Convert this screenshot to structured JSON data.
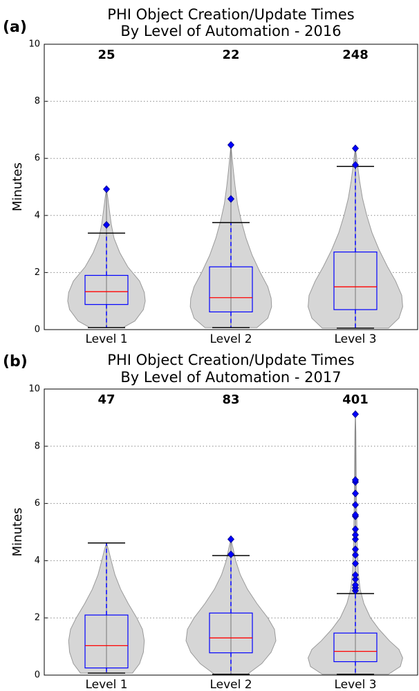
{
  "chart_data": [
    {
      "type": "violin",
      "panel": "(a)",
      "title": "PHI Object Creation/Update Times",
      "subtitle": "By Level of Automation - 2016",
      "ylabel": "Minutes",
      "ylim": [
        0,
        10
      ],
      "yticks": [
        0,
        2,
        4,
        6,
        8,
        10
      ],
      "grid": true,
      "violin_color": "#d6d6d6",
      "box_color": "#0000ff",
      "median_color": "#ff0000",
      "series": [
        {
          "name": "Level 1",
          "count": 25,
          "whislo": 0.07,
          "q1": 0.88,
          "median": 1.33,
          "q3": 1.9,
          "whishi": 3.38,
          "fliers": [
            3.67,
            4.92
          ],
          "density": {
            "y": [
              0.07,
              0.3,
              0.7,
              1.0,
              1.3,
              1.7,
              2.2,
              2.7,
              3.2,
              3.7,
              4.2,
              4.6,
              4.92
            ],
            "w": [
              0.35,
              0.6,
              0.78,
              0.82,
              0.8,
              0.7,
              0.45,
              0.28,
              0.16,
              0.1,
              0.06,
              0.03,
              0.0
            ]
          }
        },
        {
          "name": "Level 2",
          "count": 22,
          "whislo": 0.07,
          "q1": 0.62,
          "median": 1.12,
          "q3": 2.2,
          "whishi": 3.75,
          "fliers": [
            4.58,
            6.47
          ],
          "density": {
            "y": [
              0.07,
              0.4,
              0.8,
              1.1,
              1.5,
              2.0,
              2.6,
              3.2,
              3.8,
              4.4,
              5.0,
              5.6,
              6.1,
              6.47
            ],
            "w": [
              0.55,
              0.78,
              0.86,
              0.85,
              0.78,
              0.62,
              0.45,
              0.32,
              0.22,
              0.14,
              0.09,
              0.05,
              0.02,
              0.0
            ]
          }
        },
        {
          "name": "Level 3",
          "count": 248,
          "whislo": 0.05,
          "q1": 0.7,
          "median": 1.5,
          "q3": 2.72,
          "whishi": 5.72,
          "fliers": [
            5.77,
            6.35
          ],
          "density": {
            "y": [
              0.05,
              0.4,
              0.8,
              1.2,
              1.7,
              2.2,
              2.8,
              3.4,
              4.0,
              4.6,
              5.2,
              5.7,
              6.0,
              6.35
            ],
            "w": [
              0.7,
              0.92,
              1.0,
              0.98,
              0.85,
              0.68,
              0.5,
              0.35,
              0.24,
              0.15,
              0.09,
              0.05,
              0.03,
              0.0
            ]
          }
        }
      ]
    },
    {
      "type": "violin",
      "panel": "(b)",
      "title": "PHI Object Creation/Update Times",
      "subtitle": "By Level of Automation - 2017",
      "ylabel": "Minutes",
      "ylim": [
        0,
        10
      ],
      "yticks": [
        0,
        2,
        4,
        6,
        8,
        10
      ],
      "grid": true,
      "violin_color": "#d6d6d6",
      "box_color": "#0000ff",
      "median_color": "#ff0000",
      "series": [
        {
          "name": "Level 1",
          "count": 47,
          "whislo": 0.07,
          "q1": 0.25,
          "median": 1.03,
          "q3": 2.1,
          "whishi": 4.62,
          "fliers": [],
          "density": {
            "y": [
              0.07,
              0.4,
              0.8,
              1.2,
              1.6,
              2.0,
              2.5,
              3.0,
              3.5,
              4.0,
              4.4,
              4.62
            ],
            "w": [
              0.55,
              0.7,
              0.78,
              0.8,
              0.76,
              0.64,
              0.46,
              0.3,
              0.18,
              0.1,
              0.04,
              0.0
            ]
          }
        },
        {
          "name": "Level 2",
          "count": 83,
          "whislo": 0.03,
          "q1": 0.78,
          "median": 1.3,
          "q3": 2.17,
          "whishi": 4.18,
          "fliers": [
            4.22,
            4.75
          ],
          "density": {
            "y": [
              0.03,
              0.4,
              0.8,
              1.2,
              1.6,
              2.0,
              2.5,
              3.0,
              3.5,
              4.0,
              4.4,
              4.75
            ],
            "w": [
              0.35,
              0.65,
              0.85,
              0.95,
              0.92,
              0.78,
              0.55,
              0.35,
              0.2,
              0.1,
              0.05,
              0.0
            ]
          }
        },
        {
          "name": "Level 3",
          "count": 401,
          "whislo": 0.03,
          "q1": 0.47,
          "median": 0.83,
          "q3": 1.47,
          "whishi": 2.85,
          "fliers": [
            2.95,
            3.05,
            3.15,
            3.35,
            3.5,
            3.9,
            4.2,
            4.4,
            4.75,
            4.9,
            5.1,
            5.55,
            5.6,
            5.95,
            6.35,
            6.75,
            6.82,
            9.12
          ],
          "density": {
            "y": [
              0.03,
              0.3,
              0.6,
              0.9,
              1.2,
              1.6,
              2.0,
              2.5,
              3.0,
              3.6,
              4.5,
              5.5,
              6.5,
              7.5,
              8.5,
              9.12
            ],
            "w": [
              0.7,
              0.95,
              1.0,
              0.92,
              0.72,
              0.5,
              0.32,
              0.18,
              0.1,
              0.06,
              0.04,
              0.03,
              0.02,
              0.015,
              0.01,
              0.0
            ]
          }
        }
      ]
    }
  ]
}
